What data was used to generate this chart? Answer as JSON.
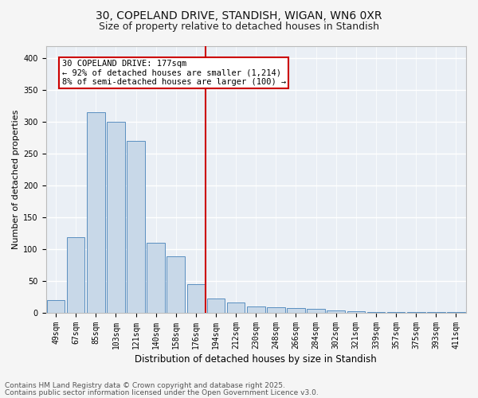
{
  "title1": "30, COPELAND DRIVE, STANDISH, WIGAN, WN6 0XR",
  "title2": "Size of property relative to detached houses in Standish",
  "xlabel": "Distribution of detached houses by size in Standish",
  "ylabel": "Number of detached properties",
  "categories": [
    "49sqm",
    "67sqm",
    "85sqm",
    "103sqm",
    "121sqm",
    "140sqm",
    "158sqm",
    "176sqm",
    "194sqm",
    "212sqm",
    "230sqm",
    "248sqm",
    "266sqm",
    "284sqm",
    "302sqm",
    "321sqm",
    "339sqm",
    "357sqm",
    "375sqm",
    "393sqm",
    "411sqm"
  ],
  "values": [
    19,
    118,
    315,
    300,
    270,
    110,
    88,
    44,
    22,
    16,
    9,
    8,
    7,
    6,
    3,
    2,
    1,
    1,
    1,
    1,
    1
  ],
  "bar_color": "#c8d8e8",
  "bar_edge_color": "#5a8fc0",
  "vline_color": "#cc0000",
  "annotation_box_text": "30 COPELAND DRIVE: 177sqm\n← 92% of detached houses are smaller (1,214)\n8% of semi-detached houses are larger (100) →",
  "annotation_box_color": "#cc0000",
  "annotation_text_color": "#000000",
  "ylim": [
    0,
    420
  ],
  "yticks": [
    0,
    50,
    100,
    150,
    200,
    250,
    300,
    350,
    400
  ],
  "background_color": "#eaeff5",
  "grid_color": "#ffffff",
  "fig_background": "#f5f5f5",
  "footer1": "Contains HM Land Registry data © Crown copyright and database right 2025.",
  "footer2": "Contains public sector information licensed under the Open Government Licence v3.0.",
  "title1_fontsize": 10,
  "title2_fontsize": 9,
  "xlabel_fontsize": 8.5,
  "ylabel_fontsize": 8,
  "tick_fontsize": 7,
  "footer_fontsize": 6.5,
  "annotation_fontsize": 7.5
}
